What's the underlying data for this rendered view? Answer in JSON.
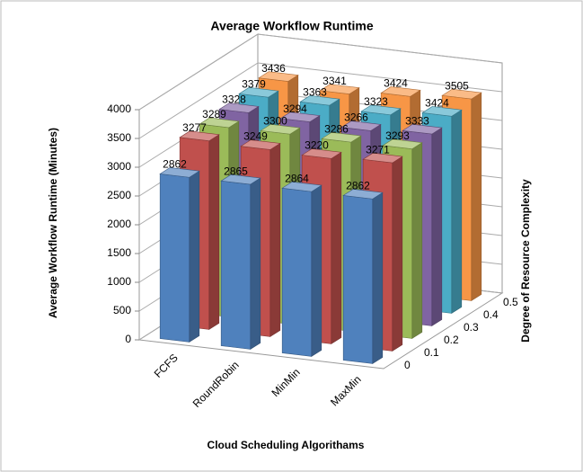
{
  "chart_data": {
    "type": "bar3d",
    "title": "Average Workflow Runtime",
    "y_label": "Average Workflow Runtime  (Minutes)",
    "x_label": "Cloud Scheduling Algorithams",
    "z_label": "Degree of Resource Complexity",
    "categories": [
      "FCFS",
      "RoundRobin",
      "MinMin",
      "MaxMin"
    ],
    "series": [
      {
        "name": "0",
        "color": "#4f81bd",
        "values": [
          2862,
          2865,
          2864,
          2862
        ]
      },
      {
        "name": "0.1",
        "color": "#c0504d",
        "values": [
          3277,
          3249,
          3220,
          3271
        ]
      },
      {
        "name": "0.2",
        "color": "#9bbb59",
        "values": [
          3289,
          3300,
          3286,
          3293
        ]
      },
      {
        "name": "0.3",
        "color": "#8064a2",
        "values": [
          3328,
          3294,
          3266,
          3333
        ]
      },
      {
        "name": "0.4",
        "color": "#4bacc6",
        "values": [
          3379,
          3363,
          3323,
          3424
        ]
      },
      {
        "name": "0.5",
        "color": "#f79646",
        "values": [
          3436,
          3341,
          3424,
          3505
        ]
      }
    ],
    "ylim": [
      0,
      4000
    ],
    "yticks": [
      0,
      500,
      1000,
      1500,
      2000,
      2500,
      3000,
      3500,
      4000
    ],
    "grid": true
  }
}
